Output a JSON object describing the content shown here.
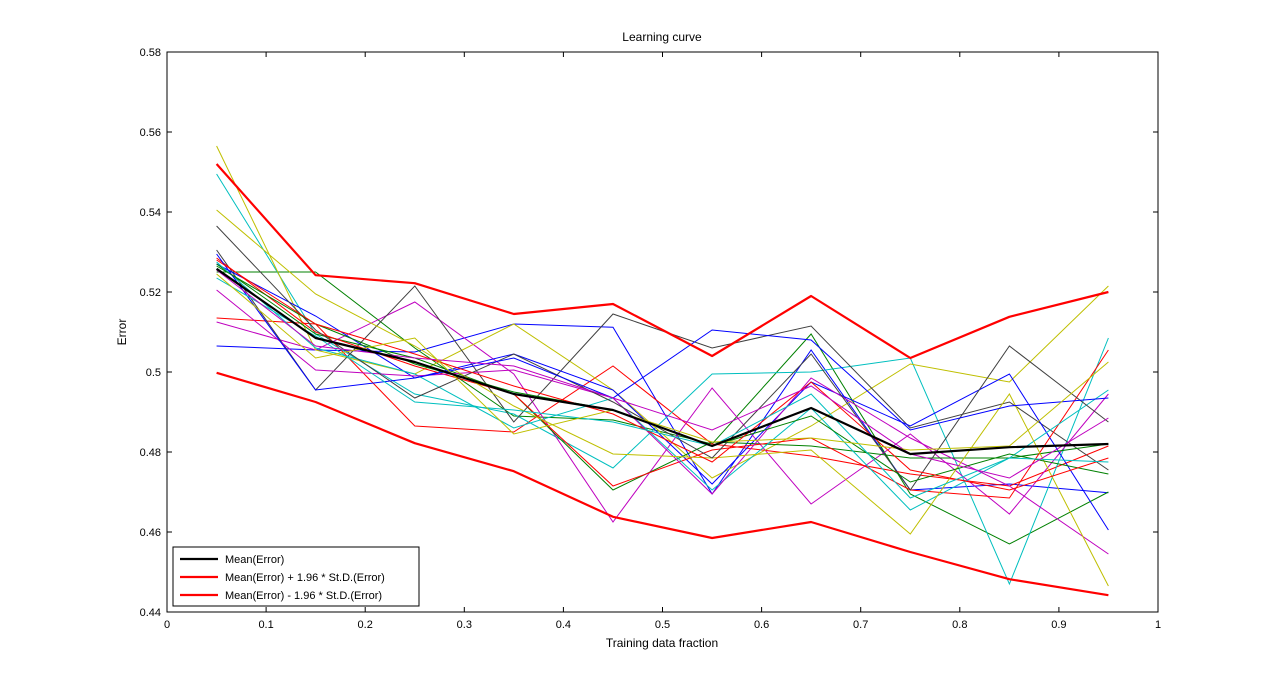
{
  "chart_data": {
    "type": "line",
    "title": "Learning curve",
    "xlabel": "Training data fraction",
    "ylabel": "Error",
    "xlim": [
      0,
      1
    ],
    "ylim": [
      0.44,
      0.58
    ],
    "xticks": [
      0,
      0.1,
      0.2,
      0.3,
      0.4,
      0.5,
      0.6,
      0.7,
      0.8,
      0.9,
      1
    ],
    "xtick_labels": [
      "0",
      "0.1",
      "0.2",
      "0.3",
      "0.4",
      "0.5",
      "0.6",
      "0.7",
      "0.8",
      "0.9",
      "1"
    ],
    "yticks": [
      0.44,
      0.46,
      0.48,
      0.5,
      0.52,
      0.54,
      0.56,
      0.58
    ],
    "ytick_labels": [
      "0.44",
      "0.46",
      "0.48",
      "0.5",
      "0.52",
      "0.54",
      "0.56",
      "0.58"
    ],
    "grid": false,
    "legend_position": "bottom-left",
    "x": [
      0.05,
      0.15,
      0.25,
      0.35,
      0.45,
      0.55,
      0.65,
      0.75,
      0.85,
      0.95
    ],
    "highlighted_series": [
      {
        "name": "Mean(Error)",
        "color": "#000000",
        "values": [
          0.5258,
          0.5085,
          0.5025,
          0.4945,
          0.4905,
          0.4815,
          0.491,
          0.4795,
          0.4812,
          0.482
        ]
      },
      {
        "name": "Mean(Error) + 1.96 * St.D.(Error)",
        "color": "#ff0000",
        "values": [
          0.552,
          0.5242,
          0.5222,
          0.5145,
          0.517,
          0.504,
          0.519,
          0.5035,
          0.5138,
          0.52
        ]
      },
      {
        "name": "Mean(Error) - 1.96 * St.D.(Error)",
        "color": "#ff0000",
        "values": [
          0.4998,
          0.4925,
          0.4822,
          0.4752,
          0.4638,
          0.4585,
          0.4625,
          0.455,
          0.4482,
          0.4442
        ]
      }
    ],
    "runs": [
      {
        "color": "#0000ff",
        "values": [
          0.5065,
          0.5055,
          0.505,
          0.512,
          0.5112,
          0.4695,
          0.5055,
          0.4705,
          0.472,
          0.4698
        ]
      },
      {
        "color": "#008000",
        "values": [
          0.525,
          0.525,
          0.506,
          0.489,
          0.488,
          0.482,
          0.5095,
          0.4695,
          0.457,
          0.47
        ]
      },
      {
        "color": "#ff0000",
        "values": [
          0.5135,
          0.512,
          0.4865,
          0.485,
          0.5015,
          0.482,
          0.479,
          0.4745,
          0.4715,
          0.4815
        ]
      },
      {
        "color": "#00bfbf",
        "values": [
          0.5495,
          0.5095,
          0.4945,
          0.4895,
          0.476,
          0.4995,
          0.5,
          0.5035,
          0.447,
          0.5085
        ]
      },
      {
        "color": "#bf00bf",
        "values": [
          0.5125,
          0.5055,
          0.5175,
          0.4995,
          0.4625,
          0.496,
          0.467,
          0.4845,
          0.4645,
          0.4945
        ]
      },
      {
        "color": "#bfbf00",
        "values": [
          0.5565,
          0.5055,
          0.4995,
          0.512,
          0.4955,
          0.4735,
          0.4865,
          0.502,
          0.4975,
          0.5215
        ]
      },
      {
        "color": "#404040",
        "values": [
          0.5305,
          0.4955,
          0.5215,
          0.4875,
          0.5145,
          0.506,
          0.5115,
          0.486,
          0.4925,
          0.4755
        ]
      },
      {
        "color": "#0000ff",
        "values": [
          0.527,
          0.514,
          0.4985,
          0.5045,
          0.4955,
          0.472,
          0.4975,
          0.4865,
          0.4995,
          0.4605
        ]
      },
      {
        "color": "#008000",
        "values": [
          0.527,
          0.5095,
          0.5035,
          0.4945,
          0.4705,
          0.4825,
          0.4815,
          0.4785,
          0.4785,
          0.482
        ]
      },
      {
        "color": "#ff0000",
        "values": [
          0.5285,
          0.51,
          0.5015,
          0.4945,
          0.4715,
          0.4805,
          0.4835,
          0.4705,
          0.4685,
          0.5055
        ]
      },
      {
        "color": "#00bfbf",
        "values": [
          0.5275,
          0.506,
          0.4995,
          0.486,
          0.4935,
          0.4705,
          0.491,
          0.4655,
          0.4785,
          0.4955
        ]
      },
      {
        "color": "#bf00bf",
        "values": [
          0.5205,
          0.5005,
          0.499,
          0.5005,
          0.4935,
          0.4695,
          0.4985,
          0.4835,
          0.4715,
          0.4545
        ]
      },
      {
        "color": "#bfbf00",
        "values": [
          0.5405,
          0.5195,
          0.5065,
          0.4915,
          0.4795,
          0.4785,
          0.4805,
          0.4595,
          0.4945,
          0.4465
        ]
      },
      {
        "color": "#404040",
        "values": [
          0.5365,
          0.5105,
          0.4935,
          0.5045,
          0.4925,
          0.4785,
          0.5045,
          0.4705,
          0.5065,
          0.4875
        ]
      },
      {
        "color": "#0000ff",
        "values": [
          0.5295,
          0.4955,
          0.4985,
          0.5035,
          0.4935,
          0.5105,
          0.508,
          0.4855,
          0.4915,
          0.4935
        ]
      },
      {
        "color": "#008000",
        "values": [
          0.5265,
          0.512,
          0.502,
          0.495,
          0.4905,
          0.4815,
          0.489,
          0.4725,
          0.4795,
          0.4745
        ]
      },
      {
        "color": "#ff0000",
        "values": [
          0.528,
          0.512,
          0.5045,
          0.4965,
          0.4895,
          0.4775,
          0.4975,
          0.4755,
          0.4705,
          0.4785
        ]
      },
      {
        "color": "#00bfbf",
        "values": [
          0.5235,
          0.509,
          0.4925,
          0.4905,
          0.4875,
          0.4815,
          0.4945,
          0.4685,
          0.4785,
          0.4775
        ]
      },
      {
        "color": "#bf00bf",
        "values": [
          0.5255,
          0.5065,
          0.5035,
          0.5015,
          0.4935,
          0.4855,
          0.4965,
          0.4795,
          0.4735,
          0.4885
        ]
      },
      {
        "color": "#bfbf00",
        "values": [
          0.5245,
          0.5035,
          0.5085,
          0.4845,
          0.4905,
          0.4825,
          0.4835,
          0.4805,
          0.4815,
          0.5025
        ]
      }
    ]
  }
}
